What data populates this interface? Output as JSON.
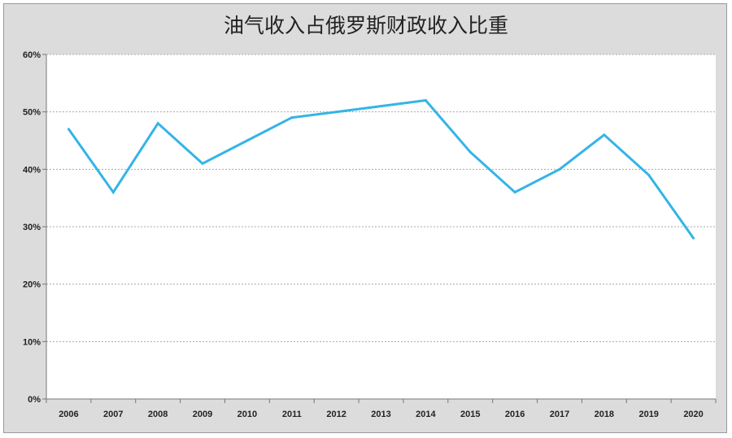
{
  "chart_data": {
    "type": "line",
    "title": "油气收入占俄罗斯财政收入比重",
    "categories": [
      "2006",
      "2007",
      "2008",
      "2009",
      "2010",
      "2011",
      "2012",
      "2013",
      "2014",
      "2015",
      "2016",
      "2017",
      "2018",
      "2019",
      "2020"
    ],
    "series": [
      {
        "values": [
          47,
          36,
          48,
          41,
          45,
          49,
          50,
          51,
          52,
          43,
          36,
          40,
          46,
          39,
          28
        ]
      }
    ],
    "ylim": [
      0,
      60
    ],
    "yticks": [
      "0%",
      "10%",
      "20%",
      "30%",
      "40%",
      "50%",
      "60%"
    ],
    "grid": true,
    "line_color": "#35b4e6"
  }
}
